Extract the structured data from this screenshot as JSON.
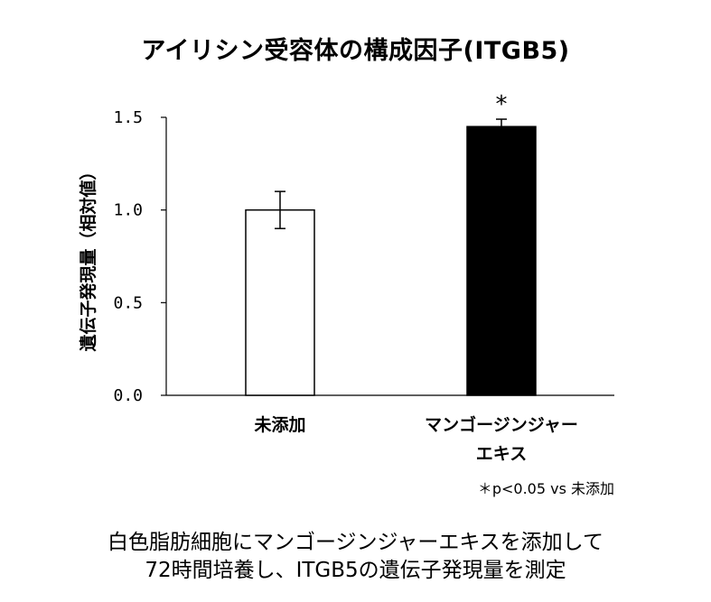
{
  "chart_data": {
    "type": "bar",
    "title": "アイリシン受容体の構成因子(ITGB5)",
    "ylabel": "遺伝子発現量（相対値）",
    "ylim": [
      0,
      1.5
    ],
    "yticks": [
      "0.0",
      "0.5",
      "1.0",
      "1.5"
    ],
    "categories": [
      "未添加",
      "マンゴージンジャーエキス"
    ],
    "category_lines": [
      [
        "未添加"
      ],
      [
        "マンゴージンジャー",
        "エキス"
      ]
    ],
    "values": [
      1.0,
      1.45
    ],
    "errors": [
      0.1,
      0.04
    ],
    "bar_colors": [
      "#ffffff",
      "#000000"
    ],
    "significance": [
      "",
      "*"
    ],
    "annotation": "＊p<0.05 vs 未添加"
  },
  "caption": {
    "line1": "白色脂肪細胞にマンゴージンジャーエキスを添加して",
    "line2": "72時間培養し、ITGB5の遺伝子発現量を測定"
  }
}
